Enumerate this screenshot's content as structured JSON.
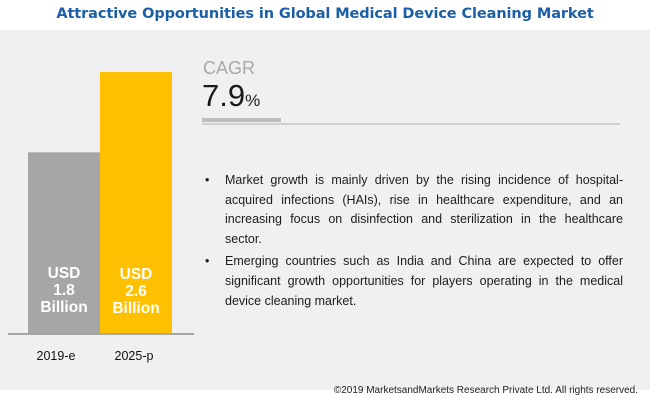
{
  "title": "Attractive Opportunities in Global Medical Device Cleaning Market",
  "chart_data": {
    "type": "bar",
    "title": "Attractive Opportunities in Global Medical Device Cleaning Market",
    "categories": [
      "2019-e",
      "2025-p"
    ],
    "values": [
      1.8,
      2.6
    ],
    "unit": "USD Billion",
    "bar_labels": [
      [
        "USD",
        "1.8",
        "Billion"
      ],
      [
        "USD",
        "2.6",
        "Billion"
      ]
    ],
    "colors": [
      "#a6a6a6",
      "#ffc000"
    ],
    "xlabel": "",
    "ylabel": "",
    "ylim": [
      0,
      2.9
    ],
    "grid": false,
    "legend": "none"
  },
  "cagr": {
    "label": "CAGR",
    "value": "7.9",
    "unit": "%"
  },
  "bullets": [
    "Market growth is mainly driven by the rising incidence of hospital-acquired infections (HAIs), rise in healthcare expenditure, and an increasing focus on disinfection and sterilization in the healthcare sector.",
    "Emerging countries such as India and China are expected to offer significant growth opportunities for players operating in the medical device cleaning market."
  ],
  "bullet_glyph": "•",
  "footer": "©2019 MarketsandMarkets Research Private Ltd. All rights reserved.",
  "colors": {
    "title": "#1d5fa6",
    "panel": "#f0f0f0",
    "baseline": "#a6a6a6"
  }
}
